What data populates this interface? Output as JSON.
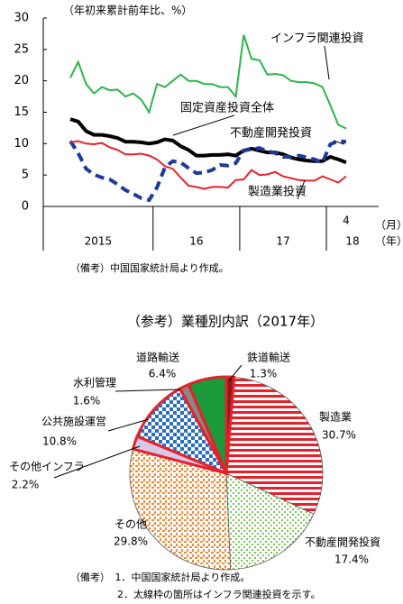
{
  "chart_data": [
    {
      "type": "line",
      "y_axis_label": "（年初来累計前年比、%）",
      "ylim": [
        0,
        30
      ],
      "yticks": [
        0,
        5,
        10,
        15,
        20,
        25,
        30
      ],
      "categories": [
        null,
        null,
        null,
        null,
        null,
        null,
        null,
        null,
        null,
        null,
        null,
        null,
        null,
        null,
        null,
        null,
        null,
        null,
        null,
        null,
        null,
        null,
        null,
        null,
        null,
        null,
        null,
        null,
        null,
        null,
        null,
        null,
        null,
        null,
        null,
        "4"
      ],
      "year_labels": [
        "2015",
        "16",
        "17",
        "18"
      ],
      "month_unit": "（月）",
      "year_unit": "（年）",
      "series": [
        {
          "name": "インフラ関連投資",
          "color": "#2fb34c",
          "dash": false,
          "values": [
            20.5,
            23,
            19.5,
            18,
            19,
            18.5,
            18.6,
            17.5,
            18,
            17,
            15,
            19.5,
            19,
            20,
            21,
            20,
            20,
            19.5,
            19.5,
            19,
            19,
            17.5,
            27.3,
            23.5,
            23.3,
            21,
            21.1,
            20.9,
            20,
            19.8,
            19.8,
            19.6,
            19,
            16.1,
            13,
            12.4
          ]
        },
        {
          "name": "固定資産投資全体",
          "color": "#000000",
          "dash": false,
          "values": [
            13.9,
            13.5,
            12,
            11.4,
            11.4,
            11.2,
            10.9,
            10.3,
            10.3,
            10.2,
            10.0,
            10.2,
            10.7,
            10.5,
            9.6,
            9.0,
            8.1,
            8.1,
            8.2,
            8.2,
            8.3,
            8.1,
            8.9,
            9.2,
            8.9,
            8.6,
            8.6,
            8.3,
            7.8,
            7.5,
            7.3,
            7.2,
            7.2,
            7.9,
            7.5,
            7.0
          ]
        },
        {
          "name": "不動産開発投資",
          "color": "#1d3a9a",
          "dash": true,
          "values": [
            10.4,
            8.5,
            6,
            5.1,
            4.6,
            4.3,
            3.5,
            2.6,
            2.0,
            1.3,
            1.0,
            3.0,
            6.2,
            7.2,
            7.0,
            6.1,
            5.3,
            5.4,
            5.8,
            6.6,
            6.5,
            6.9,
            8.9,
            9.1,
            9.3,
            8.8,
            8.5,
            7.9,
            7.9,
            8.1,
            7.8,
            7.5,
            7.0,
            9.9,
            10.4,
            10.3
          ]
        },
        {
          "name": "製造業投資",
          "color": "#e5222b",
          "dash": false,
          "values": [
            10.2,
            10.4,
            10.0,
            9.9,
            10.1,
            9.4,
            9.0,
            8.3,
            8.3,
            8.4,
            8.1,
            7.5,
            6.4,
            6.0,
            4.6,
            3.3,
            3.1,
            2.8,
            3.1,
            3.1,
            3.0,
            4.2,
            4.3,
            5.8,
            5.0,
            5.1,
            5.5,
            4.8,
            4.5,
            4.2,
            4.1,
            4.1,
            4.8,
            4.3,
            3.8,
            4.8
          ]
        }
      ],
      "note": "（備考）中国国家統計局より作成。"
    },
    {
      "type": "pie",
      "title": "（参考）業種別内訳（2017年）",
      "categories": [
        "鉄道輸送",
        "製造業",
        "不動産開発投資",
        "その他",
        "その他インフラ",
        "公共施設運営",
        "水利管理",
        "道路輸送"
      ],
      "values": [
        1.3,
        30.7,
        17.4,
        29.8,
        2.2,
        10.8,
        1.6,
        6.4
      ],
      "value_labels": [
        "1.3%",
        "30.7%",
        "17.4%",
        "29.8%",
        "2.2%",
        "10.8%",
        "1.6%",
        "6.4%"
      ],
      "colors": [
        "#8b1a1a",
        "#e5222b",
        "#7cc35a",
        "#f08a3c",
        "#d8c8e8",
        "#2c6fc0",
        "#888888",
        "#1a9a3a"
      ],
      "patterns": [
        "solid",
        "stripes",
        "dots",
        "dots",
        "solid",
        "checker",
        "solid",
        "solid"
      ],
      "outlined": [
        true,
        false,
        false,
        false,
        true,
        true,
        true,
        true
      ],
      "notes": [
        "（備考）　1．中国国家統計局より作成。",
        "2．太線枠の箇所はインフラ関連投資を示す。"
      ]
    }
  ]
}
